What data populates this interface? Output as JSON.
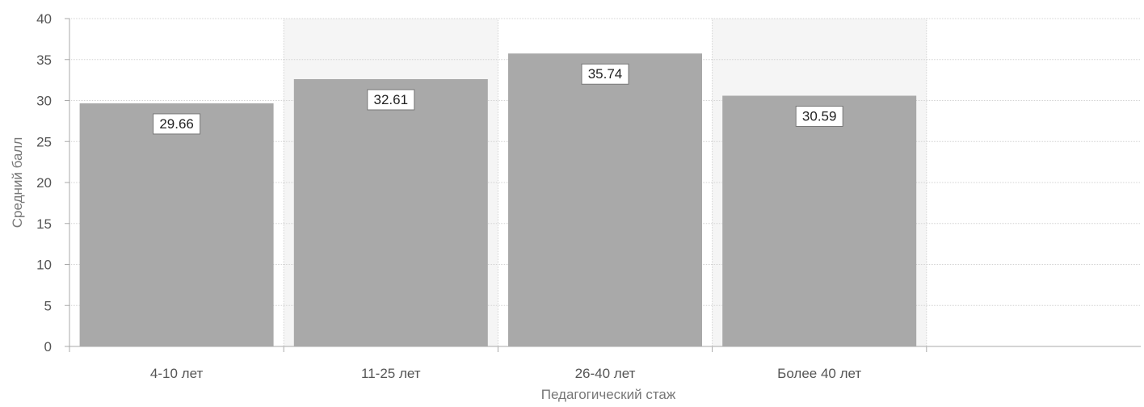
{
  "chart_data": {
    "type": "bar",
    "categories": [
      "4-10 лет",
      "11-25 лет",
      "26-40 лет",
      "Более 40 лет"
    ],
    "values": [
      29.66,
      32.61,
      35.74,
      30.59
    ],
    "data_labels": [
      "29.66",
      "32.61",
      "35.74",
      "30.59"
    ],
    "xlabel": "Педагогический стаж",
    "ylabel": "Средний балл",
    "ylim": [
      0,
      40
    ],
    "yticks": [
      0,
      5,
      10,
      15,
      20,
      25,
      30,
      35,
      40
    ],
    "grid": true,
    "bar_color": "#a9a9a9",
    "band_color": "#f5f5f5",
    "grid_color": "#d4d4d4"
  }
}
